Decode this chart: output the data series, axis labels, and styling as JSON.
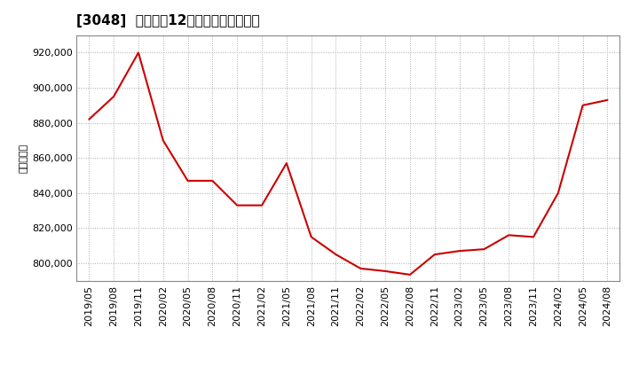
{
  "title": "[3048]  売上高の12か月移動合計の推移",
  "ylabel": "（百万円）",
  "line_color": "#cc0000",
  "background_color": "#ffffff",
  "plot_bg_color": "#ffffff",
  "grid_color": "#aaaaaa",
  "dates": [
    "2019/05",
    "2019/08",
    "2019/11",
    "2020/02",
    "2020/05",
    "2020/08",
    "2020/11",
    "2021/02",
    "2021/05",
    "2021/08",
    "2021/11",
    "2022/02",
    "2022/05",
    "2022/08",
    "2022/11",
    "2023/02",
    "2023/05",
    "2023/08",
    "2023/11",
    "2024/02",
    "2024/05",
    "2024/08"
  ],
  "values": [
    882000,
    895000,
    920000,
    870000,
    847000,
    847000,
    833000,
    833000,
    857000,
    815000,
    805000,
    797000,
    795500,
    793500,
    805000,
    807000,
    808000,
    816000,
    815000,
    840000,
    890000,
    893000
  ],
  "yticks": [
    800000,
    820000,
    840000,
    860000,
    880000,
    900000,
    920000
  ],
  "ylim": [
    790000,
    930000
  ],
  "title_fontsize": 11,
  "tick_fontsize": 8,
  "ylabel_fontsize": 8
}
